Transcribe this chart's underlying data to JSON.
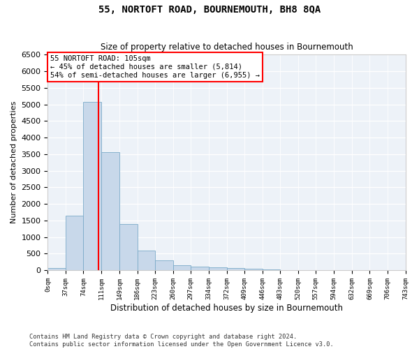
{
  "title": "55, NORTOFT ROAD, BOURNEMOUTH, BH8 8QA",
  "subtitle": "Size of property relative to detached houses in Bournemouth",
  "xlabel": "Distribution of detached houses by size in Bournemouth",
  "ylabel": "Number of detached properties",
  "footer_line1": "Contains HM Land Registry data © Crown copyright and database right 2024.",
  "footer_line2": "Contains public sector information licensed under the Open Government Licence v3.0.",
  "annotation_line1": "55 NORTOFT ROAD: 105sqm",
  "annotation_line2": "← 45% of detached houses are smaller (5,814)",
  "annotation_line3": "54% of semi-detached houses are larger (6,955) →",
  "property_size": 105,
  "bar_color": "#c8d8ea",
  "bar_edge_color": "#7aaac8",
  "vline_color": "red",
  "background_color": "#edf2f8",
  "ylim": [
    0,
    6500
  ],
  "yticks": [
    0,
    500,
    1000,
    1500,
    2000,
    2500,
    3000,
    3500,
    4000,
    4500,
    5000,
    5500,
    6000,
    6500
  ],
  "bin_edges": [
    0,
    37,
    74,
    111,
    149,
    186,
    223,
    260,
    297,
    334,
    372,
    409,
    446,
    483,
    520,
    557,
    594,
    632,
    669,
    706,
    743
  ],
  "bin_heights": [
    70,
    1640,
    5080,
    3570,
    1390,
    590,
    290,
    155,
    115,
    90,
    60,
    40,
    30,
    0,
    0,
    0,
    0,
    0,
    0,
    0
  ]
}
